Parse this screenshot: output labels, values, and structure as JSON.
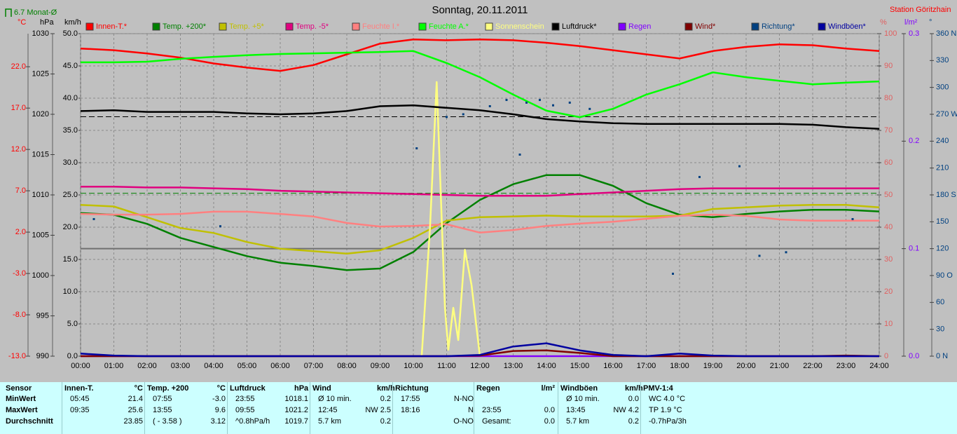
{
  "chart_data": {
    "type": "line",
    "title": "Sonntag, 20.11.2011",
    "station": "Station Göritzhain",
    "monthly_mean": {
      "value": 6.7,
      "label": "6.7 Monat-Ø",
      "color": "#008000"
    },
    "x": [
      0,
      1,
      2,
      3,
      4,
      5,
      6,
      7,
      8,
      9,
      10,
      11,
      12,
      13,
      14,
      15,
      16,
      17,
      18,
      19,
      20,
      21,
      22,
      23,
      24
    ],
    "xlim": [
      0,
      24
    ],
    "xticks": [
      {
        "value": 0,
        "label": "00:00"
      },
      {
        "value": 1,
        "label": "01:00"
      },
      {
        "value": 2,
        "label": "02:00"
      },
      {
        "value": 3,
        "label": "03:00"
      },
      {
        "value": 4,
        "label": "04:00"
      },
      {
        "value": 5,
        "label": "05:00"
      },
      {
        "value": 6,
        "label": "06:00"
      },
      {
        "value": 7,
        "label": "07:00"
      },
      {
        "value": 8,
        "label": "08:00"
      },
      {
        "value": 9,
        "label": "09:00"
      },
      {
        "value": 10,
        "label": "10:00"
      },
      {
        "value": 11,
        "label": "11:00"
      },
      {
        "value": 12,
        "label": "12:00"
      },
      {
        "value": 13,
        "label": "13:00"
      },
      {
        "value": 14,
        "label": "14:00"
      },
      {
        "value": 15,
        "label": "15:00"
      },
      {
        "value": 16,
        "label": "16:00"
      },
      {
        "value": 17,
        "label": "17:00"
      },
      {
        "value": 18,
        "label": "18:00"
      },
      {
        "value": 19,
        "label": "19:00"
      },
      {
        "value": 20,
        "label": "20:00"
      },
      {
        "value": 21,
        "label": "21:00"
      },
      {
        "value": 22,
        "label": "22:00"
      },
      {
        "value": 23,
        "label": "23:00"
      },
      {
        "value": 24,
        "label": "24:00"
      }
    ],
    "grid": true,
    "axes": [
      {
        "unit": "°C",
        "color": "#ff0000",
        "lim": [
          -13,
          26
        ],
        "ticks": [
          {
            "value": -13,
            "label": "-13.0"
          },
          {
            "value": -8,
            "label": "-8.0"
          },
          {
            "value": -3,
            "label": "-3.0"
          },
          {
            "value": 2,
            "label": "2.0"
          },
          {
            "value": 7,
            "label": "7.0"
          },
          {
            "value": 12,
            "label": "12.0"
          },
          {
            "value": 17,
            "label": "17.0"
          },
          {
            "value": 22,
            "label": "22.0"
          }
        ]
      },
      {
        "unit": "hPa",
        "color": "#000000",
        "lim": [
          990,
          1030
        ],
        "ticks": [
          990,
          995,
          1000,
          1005,
          1010,
          1015,
          1020,
          1025,
          1030
        ]
      },
      {
        "unit": "km/h",
        "color": "#000000",
        "lim": [
          0,
          50
        ],
        "ticks": [
          {
            "value": 0,
            "label": "0.0"
          },
          {
            "value": 5,
            "label": "5.0"
          },
          {
            "value": 10,
            "label": "10.0"
          },
          {
            "value": 15,
            "label": "15.0"
          },
          {
            "value": 20,
            "label": "20.0"
          },
          {
            "value": 25,
            "label": "25.0"
          },
          {
            "value": 30,
            "label": "30.0"
          },
          {
            "value": 35,
            "label": "35.0"
          },
          {
            "value": 40,
            "label": "40.0"
          },
          {
            "value": 45,
            "label": "45.0"
          },
          {
            "value": 50,
            "label": "50.0"
          }
        ]
      },
      {
        "unit": "%",
        "color": "#e06060",
        "lim": [
          0,
          100
        ],
        "ticks": [
          0,
          10,
          20,
          30,
          40,
          50,
          60,
          70,
          80,
          90,
          100
        ]
      },
      {
        "unit": "l/m²",
        "color": "#8000ff",
        "lim": [
          0,
          0.3
        ],
        "ticks": [
          {
            "value": 0,
            "label": "0.0"
          },
          0.1,
          0.2,
          0.3
        ]
      },
      {
        "unit": "°",
        "color": "#004080",
        "lim": [
          0,
          360
        ],
        "ticks": [
          {
            "value": 0,
            "label": "0 N"
          },
          30,
          60,
          {
            "value": 90,
            "label": "90 O"
          },
          120,
          150,
          {
            "value": 180,
            "label": "180 S"
          },
          210,
          240,
          {
            "value": 270,
            "label": "270 W"
          },
          300,
          330,
          {
            "value": 360,
            "label": "360 N"
          }
        ]
      }
    ],
    "series": [
      {
        "name": "Innen-T.*",
        "color": "#ff0000",
        "axis": 0,
        "values": [
          24.2,
          24.0,
          23.6,
          23.1,
          22.4,
          21.9,
          21.5,
          22.2,
          23.5,
          24.8,
          25.3,
          25.2,
          25.3,
          25.2,
          24.9,
          24.5,
          24.0,
          23.5,
          23.0,
          23.9,
          24.4,
          24.7,
          24.6,
          24.2,
          23.9
        ]
      },
      {
        "name": "Temp. +200*",
        "color": "#008000",
        "axis": 0,
        "values": [
          4.3,
          4.1,
          3.0,
          1.3,
          0.2,
          -0.9,
          -1.7,
          -2.1,
          -2.6,
          -2.4,
          -0.4,
          3.1,
          5.9,
          7.8,
          8.9,
          8.9,
          7.6,
          5.5,
          4.1,
          3.8,
          4.2,
          4.5,
          4.7,
          4.7,
          4.5
        ]
      },
      {
        "name": "Temp. +5*",
        "color": "#c0c000",
        "axis": 0,
        "values": [
          5.3,
          5.1,
          3.8,
          2.5,
          1.9,
          0.8,
          0.0,
          -0.3,
          -0.6,
          -0.2,
          1.3,
          3.4,
          3.8,
          3.9,
          4.0,
          3.9,
          3.9,
          3.9,
          4.0,
          4.8,
          5.0,
          5.2,
          5.3,
          5.3,
          5.0
        ]
      },
      {
        "name": "Temp. -5*",
        "color": "#e0007f",
        "axis": 0,
        "values": [
          7.5,
          7.5,
          7.4,
          7.4,
          7.3,
          7.2,
          7.0,
          6.9,
          6.8,
          6.7,
          6.6,
          6.5,
          6.4,
          6.4,
          6.4,
          6.6,
          6.8,
          7.0,
          7.2,
          7.3,
          7.3,
          7.3,
          7.3,
          7.3,
          7.3
        ]
      },
      {
        "name": "Feuchte I.*",
        "color": "#ff8080",
        "axis": 3,
        "values": [
          44.1,
          43.9,
          43.9,
          44.1,
          44.8,
          44.8,
          44.1,
          43.3,
          41.3,
          40.2,
          40.4,
          40.9,
          38.3,
          39.1,
          40.4,
          41.1,
          41.7,
          42.6,
          43.5,
          43.9,
          43.5,
          42.4,
          42.0,
          42.0,
          42.0
        ]
      },
      {
        "name": "Feuchte A.*",
        "color": "#00ff00",
        "axis": 3,
        "values": [
          91.1,
          91.1,
          91.3,
          92.2,
          92.8,
          93.3,
          93.7,
          93.9,
          94.1,
          94.3,
          94.6,
          90.9,
          86.5,
          81.1,
          76.1,
          74.1,
          76.7,
          81.1,
          84.3,
          88.0,
          86.5,
          85.4,
          84.3,
          84.8,
          85.2
        ]
      },
      {
        "name": "Sonnenschein",
        "color": "#ffff80",
        "axis": 3,
        "x": [
          0,
          10.25,
          10.5,
          10.7,
          10.95,
          11.05,
          11.2,
          11.35,
          11.55,
          11.75,
          12,
          24
        ],
        "values": [
          0,
          0,
          40,
          85,
          15,
          2,
          15,
          5,
          33,
          22,
          0,
          0
        ]
      },
      {
        "name": "Luftdruck*",
        "color": "#000000",
        "axis": 1,
        "values": [
          1020.4,
          1020.5,
          1020.3,
          1020.3,
          1020.3,
          1020.1,
          1020.0,
          1020.1,
          1020.4,
          1021.0,
          1021.1,
          1020.8,
          1020.5,
          1020.0,
          1019.4,
          1019.1,
          1018.9,
          1018.8,
          1018.8,
          1018.8,
          1018.8,
          1018.8,
          1018.7,
          1018.4,
          1018.2
        ]
      },
      {
        "name": "Regen",
        "color": "#8000ff",
        "axis": 4,
        "values": [
          0,
          0,
          0,
          0,
          0,
          0,
          0,
          0,
          0,
          0,
          0,
          0,
          0,
          0,
          0,
          0,
          0,
          0,
          0,
          0,
          0,
          0,
          0,
          0,
          0
        ]
      },
      {
        "name": "Wind*",
        "color": "#800000",
        "axis": 2,
        "values": [
          0,
          0,
          0,
          0,
          0,
          0,
          0,
          0,
          0,
          0,
          0,
          0,
          0.1,
          0.8,
          0.9,
          0.5,
          0,
          0,
          0,
          0,
          0,
          0,
          0,
          0.1,
          0
        ]
      },
      {
        "name": "Richtung*",
        "color": "#004080",
        "axis": 5,
        "type": "scatter",
        "x": [
          0.4,
          4.2,
          10.1,
          11.0,
          11.5,
          12.3,
          12.8,
          13.2,
          13.4,
          13.8,
          14.2,
          14.7,
          15.3,
          17.8,
          18.6,
          19.8,
          20.4,
          21.2,
          23.2
        ],
        "values": [
          153,
          145,
          232,
          267,
          270,
          279,
          286,
          225,
          283,
          286,
          280,
          283,
          276,
          92,
          200,
          212,
          112,
          116,
          153
        ]
      },
      {
        "name": "Windböen*",
        "color": "#0000a0",
        "axis": 2,
        "values": [
          0.4,
          0.1,
          0,
          0,
          0,
          0,
          0,
          0,
          0,
          0,
          0,
          0,
          0.2,
          1.5,
          2.0,
          0.9,
          0.2,
          0,
          0.4,
          0.1,
          0,
          0,
          0,
          0,
          0
        ]
      }
    ]
  },
  "table": {
    "row_labels": [
      "Sensor",
      "MinWert",
      "MaxWert",
      "Durchschnitt"
    ],
    "groups": [
      {
        "name": "Innen-T.",
        "unit": "°C",
        "rows": [
          [
            "05:45",
            "21.4"
          ],
          [
            "09:35",
            "25.6"
          ],
          [
            null,
            "23.85"
          ]
        ]
      },
      {
        "name": "Temp. +200",
        "unit": "°C",
        "rows": [
          [
            "07:55",
            "-3.0"
          ],
          [
            "13:55",
            "9.6"
          ],
          [
            "( - 3.58 )",
            "3.12"
          ]
        ]
      },
      {
        "name": "Luftdruck",
        "unit": "hPa",
        "rows": [
          [
            "23:55",
            "1018.1"
          ],
          [
            "09:55",
            "1021.2"
          ],
          [
            "^0.8hPa/h",
            "1019.7"
          ]
        ]
      },
      {
        "name": "Wind",
        "unit": "km/h",
        "rows": [
          [
            "Ø 10 min.",
            "0.2"
          ],
          [
            "12:45",
            "NW 2.5"
          ],
          [
            "5.7 km",
            "0.2"
          ]
        ]
      },
      {
        "name": "Richtung",
        "unit": null,
        "rows": [
          [
            "17:55",
            "N-NO"
          ],
          [
            "18:16",
            "N"
          ],
          [
            null,
            "O-NO"
          ]
        ]
      },
      {
        "name": "Regen",
        "unit": "l/m²",
        "rows": [
          [
            null,
            null
          ],
          [
            "23:55",
            "0.0"
          ],
          [
            "Gesamt:",
            "0.0"
          ]
        ]
      },
      {
        "name": "Windböen",
        "unit": "km/h",
        "rows": [
          [
            "Ø 10 min.",
            "0.0"
          ],
          [
            "13:45",
            "NW 4.2"
          ],
          [
            "5.7 km",
            "0.2"
          ]
        ]
      },
      {
        "name": "PMV-1:4",
        "unit": null,
        "rows": [
          [
            "WC 4.0 °C",
            null
          ],
          [
            "TP 1.9 °C",
            null
          ],
          [
            "-0.7hPa/3h",
            null
          ]
        ]
      }
    ]
  }
}
